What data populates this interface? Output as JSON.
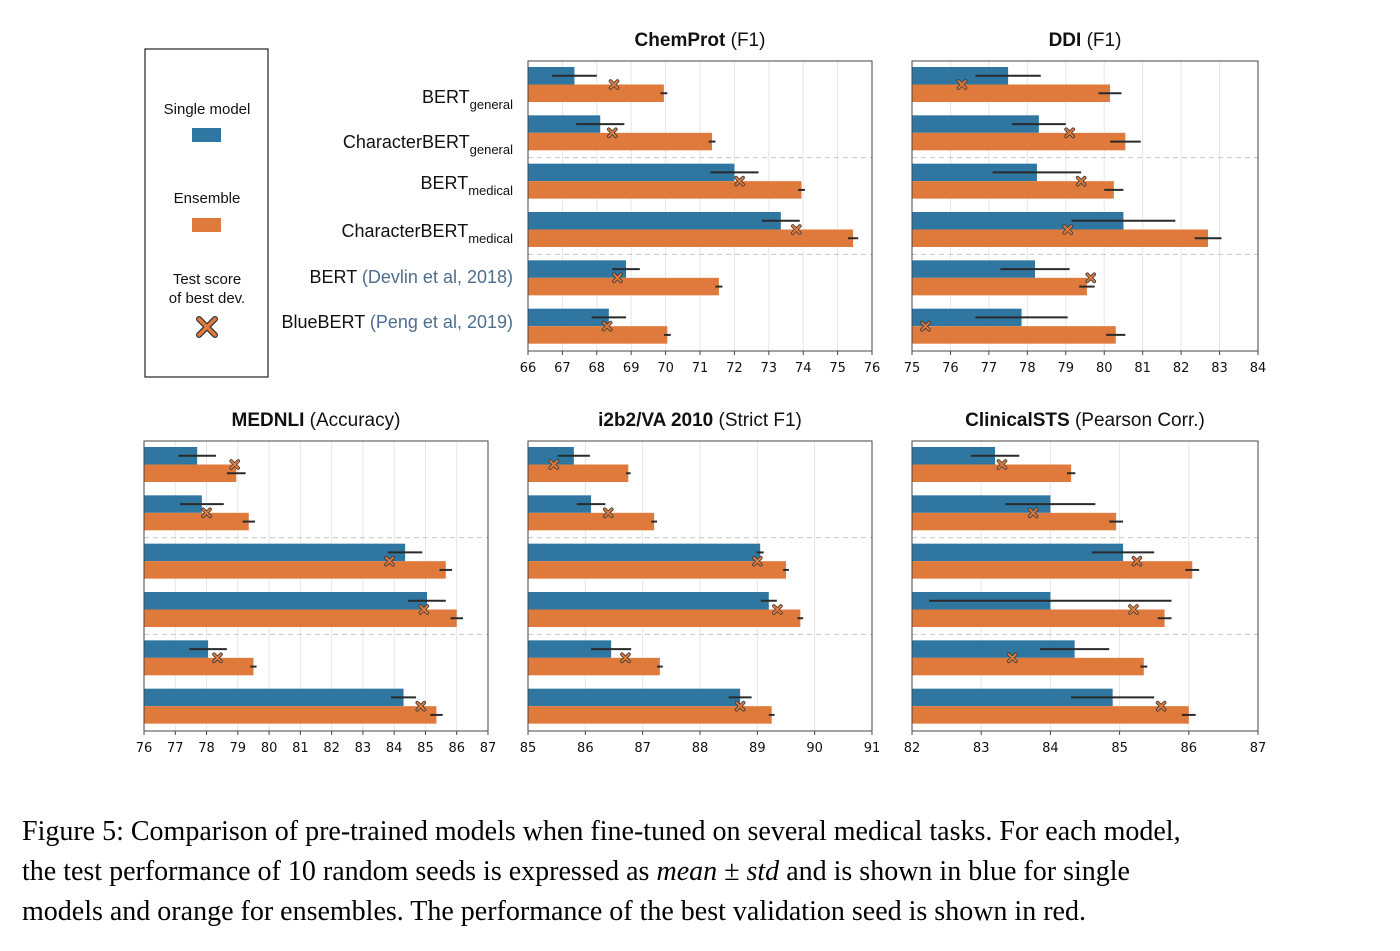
{
  "colors": {
    "single": "#2f76a0",
    "ensemble": "#e07a3c",
    "marker": "#e07a3c",
    "grid": "#e6e6e6",
    "separator": "#c8c8c8"
  },
  "legend": {
    "single_label": "Single model",
    "ensemble_label": "Ensemble",
    "marker_label_line1": "Test score",
    "marker_label_line2": "of best dev."
  },
  "models": [
    {
      "name": "BERT",
      "sub": "general",
      "cite": ""
    },
    {
      "name": "CharacterBERT",
      "sub": "general",
      "cite": ""
    },
    {
      "name": "BERT",
      "sub": "medical",
      "cite": ""
    },
    {
      "name": "CharacterBERT",
      "sub": "medical",
      "cite": ""
    },
    {
      "name": "BERT",
      "sub": "",
      "cite": "(Devlin et al, 2018)"
    },
    {
      "name": "BlueBERT",
      "sub": "",
      "cite": "(Peng et al, 2019)"
    }
  ],
  "chart_data": [
    {
      "type": "bar",
      "title_bold": "ChemProt",
      "title_rest": " (F1)",
      "xlim": [
        66,
        76
      ],
      "ticks": [
        "66",
        "67",
        "68",
        "69",
        "70",
        "71",
        "72",
        "73",
        "74",
        "75",
        "76"
      ],
      "single": [
        67.35,
        68.1,
        72.0,
        73.35,
        68.85,
        68.35
      ],
      "single_err": [
        0.65,
        0.7,
        0.7,
        0.55,
        0.4,
        0.5
      ],
      "ensemble": [
        69.95,
        71.35,
        73.95,
        75.45,
        71.55,
        70.05
      ],
      "ensemble_err": [
        0.1,
        0.1,
        0.1,
        0.15,
        0.1,
        0.1
      ],
      "best_dev_test": [
        68.5,
        68.45,
        72.15,
        73.8,
        68.6,
        68.3
      ]
    },
    {
      "type": "bar",
      "title_bold": "DDI",
      "title_rest": " (F1)",
      "xlim": [
        75,
        84
      ],
      "ticks": [
        "75",
        "76",
        "77",
        "78",
        "79",
        "80",
        "81",
        "82",
        "83",
        "84"
      ],
      "single": [
        77.5,
        78.3,
        78.25,
        80.5,
        78.2,
        77.85
      ],
      "single_err": [
        0.85,
        0.7,
        1.15,
        1.35,
        0.9,
        1.2
      ],
      "ensemble": [
        80.15,
        80.55,
        80.25,
        82.7,
        79.55,
        80.3
      ],
      "ensemble_err": [
        0.3,
        0.4,
        0.25,
        0.35,
        0.2,
        0.25
      ],
      "best_dev_test": [
        76.3,
        79.1,
        79.4,
        79.05,
        79.65,
        75.35
      ]
    },
    {
      "type": "bar",
      "title_bold": "MEDNLI",
      "title_rest": " (Accuracy)",
      "xlim": [
        76,
        87
      ],
      "ticks": [
        "76",
        "77",
        "78",
        "79",
        "80",
        "81",
        "82",
        "83",
        "84",
        "85",
        "86",
        "87"
      ],
      "single": [
        77.7,
        77.85,
        84.35,
        85.05,
        78.05,
        84.3
      ],
      "single_err": [
        0.6,
        0.7,
        0.55,
        0.6,
        0.6,
        0.4
      ],
      "ensemble": [
        78.95,
        79.35,
        85.65,
        86.0,
        79.5,
        85.35
      ],
      "ensemble_err": [
        0.3,
        0.2,
        0.2,
        0.2,
        0.1,
        0.2
      ],
      "best_dev_test": [
        78.9,
        78.0,
        83.85,
        84.95,
        78.35,
        84.85
      ]
    },
    {
      "type": "bar",
      "title_bold": "i2b2/VA 2010",
      "title_rest": " (Strict F1)",
      "xlim": [
        85,
        91
      ],
      "ticks": [
        "85",
        "86",
        "87",
        "88",
        "89",
        "90",
        "91"
      ],
      "single": [
        85.8,
        86.1,
        89.05,
        89.2,
        86.45,
        88.7
      ],
      "single_err": [
        0.28,
        0.25,
        0.06,
        0.14,
        0.35,
        0.2
      ],
      "ensemble": [
        86.75,
        87.2,
        89.5,
        89.75,
        87.3,
        89.25
      ],
      "ensemble_err": [
        0.04,
        0.05,
        0.05,
        0.05,
        0.05,
        0.05
      ],
      "best_dev_test": [
        85.45,
        86.4,
        89.0,
        89.35,
        86.7,
        88.7
      ]
    },
    {
      "type": "bar",
      "title_bold": "ClinicalSTS",
      "title_rest": " (Pearson Corr.)",
      "xlim": [
        82,
        87
      ],
      "ticks": [
        "82",
        "83",
        "84",
        "85",
        "86",
        "87"
      ],
      "single": [
        83.2,
        84.0,
        85.05,
        84.0,
        84.35,
        84.9
      ],
      "single_err": [
        0.35,
        0.65,
        0.45,
        1.75,
        0.5,
        0.6
      ],
      "ensemble": [
        84.3,
        84.95,
        86.05,
        85.65,
        85.35,
        86.0
      ],
      "ensemble_err": [
        0.06,
        0.1,
        0.1,
        0.1,
        0.05,
        0.1
      ],
      "best_dev_test": [
        83.3,
        83.75,
        85.25,
        85.2,
        83.45,
        85.6
      ]
    }
  ],
  "caption": {
    "line1": "Figure 5: Comparison of pre-trained models when fine-tuned on several medical tasks. For each model,",
    "line2_a": "the test performance of 10 random seeds is expressed as ",
    "line2_mean": "mean",
    "line2_pm": " ± ",
    "line2_std": "std",
    "line2_b": " and is shown in blue for single",
    "line3": "models and orange for ensembles. The performance of the best validation seed is shown in red."
  }
}
